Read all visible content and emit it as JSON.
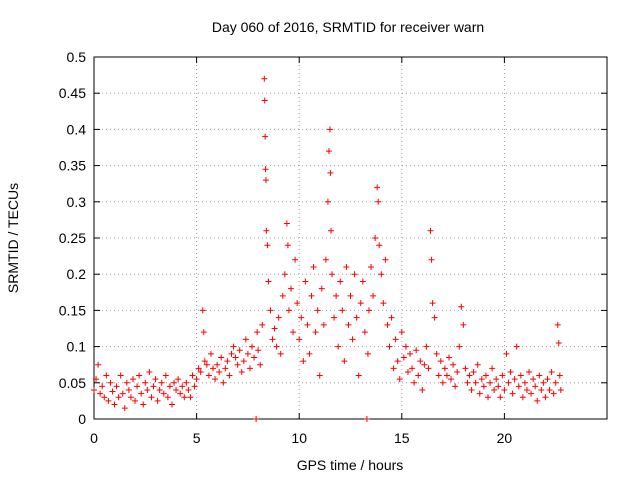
{
  "chart_data": {
    "type": "scatter",
    "title": "Day 060 of 2016, SRMTID for receiver warn",
    "xlabel": "GPS time / hours",
    "ylabel": "SRMTID / TECUs",
    "xlim": [
      0,
      25
    ],
    "ylim": [
      0,
      0.5
    ],
    "x_ticks": [
      0,
      5,
      10,
      15,
      20
    ],
    "x_tick_labels": [
      "0",
      "5",
      "10",
      "15",
      "20"
    ],
    "y_ticks": [
      0,
      0.05,
      0.1,
      0.15,
      0.2,
      0.25,
      0.3,
      0.35,
      0.4,
      0.45,
      0.5
    ],
    "y_tick_labels": [
      "0",
      "0.05",
      "0.1",
      "0.15",
      "0.2",
      "0.25",
      "0.3",
      "0.35",
      "0.4",
      "0.45",
      "0.5"
    ],
    "grid": true,
    "marker": "+",
    "color": "#ff0000",
    "series": [
      {
        "name": "SRMTID",
        "points": [
          [
            0.0,
            0.04
          ],
          [
            0.1,
            0.055
          ],
          [
            0.2,
            0.075
          ],
          [
            0.3,
            0.035
          ],
          [
            0.4,
            0.045
          ],
          [
            0.5,
            0.03
          ],
          [
            0.6,
            0.06
          ],
          [
            0.7,
            0.025
          ],
          [
            0.8,
            0.05
          ],
          [
            0.9,
            0.038
          ],
          [
            1.0,
            0.02
          ],
          [
            1.1,
            0.045
          ],
          [
            1.2,
            0.03
          ],
          [
            1.3,
            0.06
          ],
          [
            1.4,
            0.035
          ],
          [
            1.5,
            0.015
          ],
          [
            1.6,
            0.05
          ],
          [
            1.7,
            0.04
          ],
          [
            1.8,
            0.03
          ],
          [
            1.9,
            0.055
          ],
          [
            2.0,
            0.025
          ],
          [
            2.1,
            0.045
          ],
          [
            2.2,
            0.06
          ],
          [
            2.3,
            0.035
          ],
          [
            2.4,
            0.02
          ],
          [
            2.5,
            0.05
          ],
          [
            2.6,
            0.04
          ],
          [
            2.7,
            0.065
          ],
          [
            2.8,
            0.03
          ],
          [
            2.9,
            0.045
          ],
          [
            3.0,
            0.055
          ],
          [
            3.1,
            0.025
          ],
          [
            3.2,
            0.04
          ],
          [
            3.3,
            0.05
          ],
          [
            3.4,
            0.035
          ],
          [
            3.5,
            0.06
          ],
          [
            3.6,
            0.03
          ],
          [
            3.7,
            0.045
          ],
          [
            3.8,
            0.02
          ],
          [
            3.9,
            0.05
          ],
          [
            4.0,
            0.04
          ],
          [
            4.1,
            0.055
          ],
          [
            4.2,
            0.035
          ],
          [
            4.3,
            0.045
          ],
          [
            4.4,
            0.03
          ],
          [
            4.5,
            0.05
          ],
          [
            4.6,
            0.04
          ],
          [
            4.7,
            0.03
          ],
          [
            4.8,
            0.06
          ],
          [
            4.9,
            0.045
          ],
          [
            5.0,
            0.055
          ],
          [
            5.1,
            0.07
          ],
          [
            5.2,
            0.065
          ],
          [
            5.3,
            0.15
          ],
          [
            5.35,
            0.12
          ],
          [
            5.4,
            0.08
          ],
          [
            5.5,
            0.075
          ],
          [
            5.6,
            0.06
          ],
          [
            5.7,
            0.09
          ],
          [
            5.8,
            0.07
          ],
          [
            5.9,
            0.055
          ],
          [
            6.0,
            0.075
          ],
          [
            6.1,
            0.065
          ],
          [
            6.2,
            0.085
          ],
          [
            6.3,
            0.05
          ],
          [
            6.4,
            0.07
          ],
          [
            6.5,
            0.08
          ],
          [
            6.6,
            0.06
          ],
          [
            6.7,
            0.09
          ],
          [
            6.8,
            0.1
          ],
          [
            6.9,
            0.085
          ],
          [
            7.0,
            0.075
          ],
          [
            7.1,
            0.095
          ],
          [
            7.2,
            0.065
          ],
          [
            7.3,
            0.08
          ],
          [
            7.4,
            0.11
          ],
          [
            7.5,
            0.09
          ],
          [
            7.6,
            0.07
          ],
          [
            7.7,
            0.1
          ],
          [
            7.8,
            0.085
          ],
          [
            7.9,
            0.0
          ],
          [
            7.95,
            0.12
          ],
          [
            8.0,
            0.095
          ],
          [
            8.1,
            0.075
          ],
          [
            8.2,
            0.13
          ],
          [
            8.3,
            0.47
          ],
          [
            8.32,
            0.44
          ],
          [
            8.34,
            0.39
          ],
          [
            8.36,
            0.345
          ],
          [
            8.38,
            0.33
          ],
          [
            8.4,
            0.26
          ],
          [
            8.45,
            0.24
          ],
          [
            8.5,
            0.19
          ],
          [
            8.6,
            0.15
          ],
          [
            8.7,
            0.11
          ],
          [
            8.8,
            0.125
          ],
          [
            8.9,
            0.1
          ],
          [
            9.0,
            0.14
          ],
          [
            9.1,
            0.09
          ],
          [
            9.2,
            0.17
          ],
          [
            9.3,
            0.2
          ],
          [
            9.4,
            0.27
          ],
          [
            9.45,
            0.24
          ],
          [
            9.5,
            0.15
          ],
          [
            9.6,
            0.18
          ],
          [
            9.7,
            0.12
          ],
          [
            9.8,
            0.22
          ],
          [
            9.9,
            0.16
          ],
          [
            10.0,
            0.11
          ],
          [
            10.1,
            0.14
          ],
          [
            10.2,
            0.08
          ],
          [
            10.3,
            0.19
          ],
          [
            10.4,
            0.13
          ],
          [
            10.5,
            0.09
          ],
          [
            10.6,
            0.17
          ],
          [
            10.7,
            0.21
          ],
          [
            10.8,
            0.12
          ],
          [
            10.9,
            0.15
          ],
          [
            11.0,
            0.06
          ],
          [
            11.1,
            0.18
          ],
          [
            11.2,
            0.13
          ],
          [
            11.3,
            0.22
          ],
          [
            11.4,
            0.3
          ],
          [
            11.45,
            0.37
          ],
          [
            11.5,
            0.4
          ],
          [
            11.52,
            0.34
          ],
          [
            11.55,
            0.26
          ],
          [
            11.6,
            0.2
          ],
          [
            11.7,
            0.14
          ],
          [
            11.8,
            0.17
          ],
          [
            11.9,
            0.1
          ],
          [
            12.0,
            0.19
          ],
          [
            12.1,
            0.15
          ],
          [
            12.2,
            0.08
          ],
          [
            12.3,
            0.21
          ],
          [
            12.4,
            0.13
          ],
          [
            12.5,
            0.17
          ],
          [
            12.6,
            0.11
          ],
          [
            12.7,
            0.2
          ],
          [
            12.8,
            0.14
          ],
          [
            12.9,
            0.06
          ],
          [
            13.0,
            0.16
          ],
          [
            13.1,
            0.19
          ],
          [
            13.2,
            0.12
          ],
          [
            13.3,
            0.0
          ],
          [
            13.35,
            0.09
          ],
          [
            13.4,
            0.15
          ],
          [
            13.5,
            0.21
          ],
          [
            13.6,
            0.17
          ],
          [
            13.7,
            0.25
          ],
          [
            13.8,
            0.32
          ],
          [
            13.85,
            0.3
          ],
          [
            13.9,
            0.24
          ],
          [
            14.0,
            0.2
          ],
          [
            14.1,
            0.16
          ],
          [
            14.2,
            0.22
          ],
          [
            14.3,
            0.13
          ],
          [
            14.4,
            0.1
          ],
          [
            14.5,
            0.14
          ],
          [
            14.6,
            0.07
          ],
          [
            14.7,
            0.11
          ],
          [
            14.8,
            0.08
          ],
          [
            14.9,
            0.055
          ],
          [
            15.0,
            0.12
          ],
          [
            15.1,
            0.085
          ],
          [
            15.2,
            0.1
          ],
          [
            15.3,
            0.065
          ],
          [
            15.4,
            0.09
          ],
          [
            15.5,
            0.07
          ],
          [
            15.6,
            0.05
          ],
          [
            15.7,
            0.095
          ],
          [
            15.8,
            0.06
          ],
          [
            15.9,
            0.08
          ],
          [
            16.0,
            0.04
          ],
          [
            16.1,
            0.075
          ],
          [
            16.2,
            0.1
          ],
          [
            16.3,
            0.07
          ],
          [
            16.4,
            0.26
          ],
          [
            16.45,
            0.22
          ],
          [
            16.5,
            0.16
          ],
          [
            16.6,
            0.14
          ],
          [
            16.7,
            0.09
          ],
          [
            16.8,
            0.06
          ],
          [
            16.9,
            0.08
          ],
          [
            17.0,
            0.05
          ],
          [
            17.1,
            0.07
          ],
          [
            17.2,
            0.06
          ],
          [
            17.3,
            0.085
          ],
          [
            17.4,
            0.055
          ],
          [
            17.5,
            0.075
          ],
          [
            17.6,
            0.045
          ],
          [
            17.7,
            0.065
          ],
          [
            17.8,
            0.1
          ],
          [
            17.9,
            0.155
          ],
          [
            18.0,
            0.13
          ],
          [
            18.1,
            0.07
          ],
          [
            18.2,
            0.05
          ],
          [
            18.3,
            0.06
          ],
          [
            18.4,
            0.04
          ],
          [
            18.5,
            0.065
          ],
          [
            18.6,
            0.05
          ],
          [
            18.7,
            0.075
          ],
          [
            18.8,
            0.035
          ],
          [
            18.9,
            0.055
          ],
          [
            19.0,
            0.045
          ],
          [
            19.1,
            0.06
          ],
          [
            19.2,
            0.03
          ],
          [
            19.3,
            0.05
          ],
          [
            19.4,
            0.07
          ],
          [
            19.5,
            0.04
          ],
          [
            19.6,
            0.055
          ],
          [
            19.7,
            0.045
          ],
          [
            19.8,
            0.03
          ],
          [
            19.9,
            0.06
          ],
          [
            20.0,
            0.04
          ],
          [
            20.1,
            0.09
          ],
          [
            20.2,
            0.05
          ],
          [
            20.3,
            0.065
          ],
          [
            20.4,
            0.035
          ],
          [
            20.5,
            0.055
          ],
          [
            20.6,
            0.1
          ],
          [
            20.7,
            0.045
          ],
          [
            20.8,
            0.06
          ],
          [
            20.9,
            0.03
          ],
          [
            21.0,
            0.05
          ],
          [
            21.1,
            0.04
          ],
          [
            21.2,
            0.065
          ],
          [
            21.3,
            0.035
          ],
          [
            21.4,
            0.055
          ],
          [
            21.5,
            0.045
          ],
          [
            21.6,
            0.025
          ],
          [
            21.7,
            0.06
          ],
          [
            21.8,
            0.04
          ],
          [
            21.9,
            0.05
          ],
          [
            22.0,
            0.03
          ],
          [
            22.1,
            0.055
          ],
          [
            22.2,
            0.04
          ],
          [
            22.3,
            0.065
          ],
          [
            22.4,
            0.035
          ],
          [
            22.5,
            0.05
          ],
          [
            22.6,
            0.13
          ],
          [
            22.65,
            0.105
          ],
          [
            22.7,
            0.06
          ],
          [
            22.75,
            0.04
          ]
        ]
      }
    ]
  }
}
